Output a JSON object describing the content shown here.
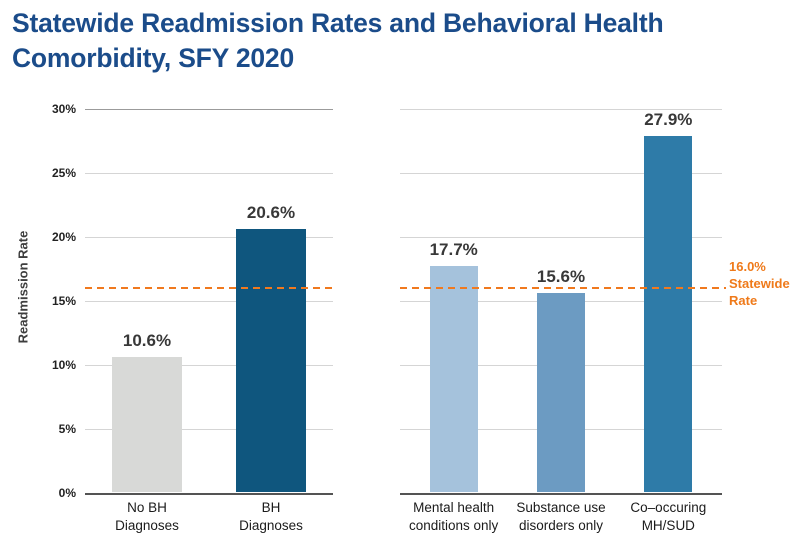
{
  "title": {
    "line1": "Statewide Readmission Rates and Behavioral Health",
    "line2": "Comorbidity, SFY 2020",
    "color": "#1b4c8a"
  },
  "y_axis": {
    "label": "Readmission Rate",
    "ticks": [
      {
        "value": 30,
        "label": "30%"
      },
      {
        "value": 25,
        "label": "25%"
      },
      {
        "value": 20,
        "label": "20%"
      },
      {
        "value": 15,
        "label": "15%"
      },
      {
        "value": 10,
        "label": "10%"
      },
      {
        "value": 5,
        "label": "5%"
      },
      {
        "value": 0,
        "label": "0%"
      }
    ]
  },
  "annotation": {
    "lines": [
      "16.0%",
      "Statewide",
      "Rate"
    ],
    "color": "#ef7a1a"
  },
  "reference_line": {
    "value": 16.0,
    "label": "16.0% Statewide Rate",
    "color": "#f0791e",
    "style": "dashed"
  },
  "chart_data": [
    {
      "type": "bar",
      "categories": [
        "No BH\nDiagnoses",
        "BH\nDiagnoses"
      ],
      "values": [
        10.6,
        20.6
      ],
      "data_labels": [
        "10.6%",
        "20.6%"
      ],
      "bar_colors": [
        "#d8d9d7",
        "#0f567e"
      ],
      "title": "",
      "xlabel": "",
      "ylabel": "Readmission Rate",
      "ylim": [
        0,
        30
      ],
      "yticks": [
        0,
        5,
        10,
        15,
        20,
        25,
        30
      ],
      "ytick_labels": [
        "0%",
        "5%",
        "10%",
        "15%",
        "20%",
        "25%",
        "30%"
      ],
      "grid": true,
      "legend": false,
      "reference_line_value": 16.0
    },
    {
      "type": "bar",
      "categories": [
        "Mental health\nconditions only",
        "Substance use\ndisorders only",
        "Co–occuring\nMH/SUD"
      ],
      "values": [
        17.7,
        15.6,
        27.9
      ],
      "data_labels": [
        "17.7%",
        "15.6%",
        "27.9%"
      ],
      "bar_colors": [
        "#a5c2dc",
        "#6c9bc2",
        "#2e7ba8"
      ],
      "title": "",
      "xlabel": "",
      "ylabel": "Readmission Rate",
      "ylim": [
        0,
        30
      ],
      "yticks": [
        0,
        5,
        10,
        15,
        20,
        25,
        30
      ],
      "ytick_labels": [
        "0%",
        "5%",
        "10%",
        "15%",
        "20%",
        "25%",
        "30%"
      ],
      "grid": true,
      "legend": false,
      "reference_line_value": 16.0
    }
  ]
}
